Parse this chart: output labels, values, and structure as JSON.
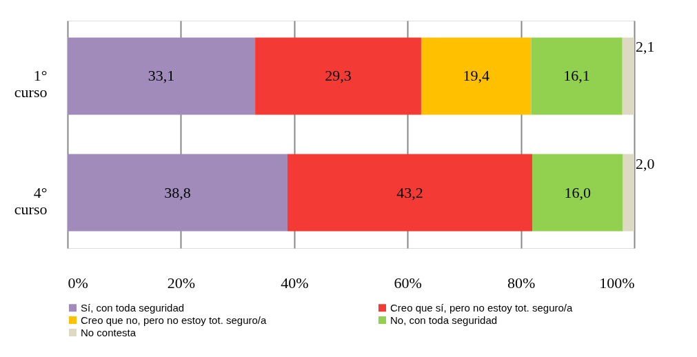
{
  "chart_data": {
    "type": "bar",
    "orientation": "horizontal",
    "stacked": true,
    "categories": [
      "1° curso",
      "4° curso"
    ],
    "series": [
      {
        "name": "Sí, con toda seguridad",
        "color": "#a08bbb",
        "values": [
          33.1,
          38.8
        ],
        "value_labels": [
          "33,1",
          "38,8"
        ]
      },
      {
        "name": "Creo que sí, pero no estoy tot. seguro/a",
        "color": "#f43a35",
        "values": [
          29.3,
          43.2
        ],
        "value_labels": [
          "29,3",
          "43,2"
        ]
      },
      {
        "name": "Creo que no, pero no estoy tot. seguro/a",
        "color": "#ffc000",
        "values": [
          19.4,
          null
        ],
        "value_labels": [
          "19,4",
          null
        ]
      },
      {
        "name": "No, con toda seguridad",
        "color": "#92d050",
        "values": [
          16.1,
          16.0
        ],
        "value_labels": [
          "16,1",
          "16,0"
        ]
      },
      {
        "name": "No contesta",
        "color": "#ddd9c3",
        "values": [
          2.1,
          2.0
        ],
        "value_labels": [
          "2,1",
          "2,0"
        ]
      }
    ],
    "xlim": [
      0,
      100
    ],
    "xticks": [
      {
        "value": 0,
        "label": "0%"
      },
      {
        "value": 20,
        "label": "20%"
      },
      {
        "value": 40,
        "label": "40%"
      },
      {
        "value": 60,
        "label": "60%"
      },
      {
        "value": 80,
        "label": "80%"
      },
      {
        "value": 100,
        "label": "100%"
      }
    ],
    "grid": "x",
    "legend": "bottom"
  }
}
